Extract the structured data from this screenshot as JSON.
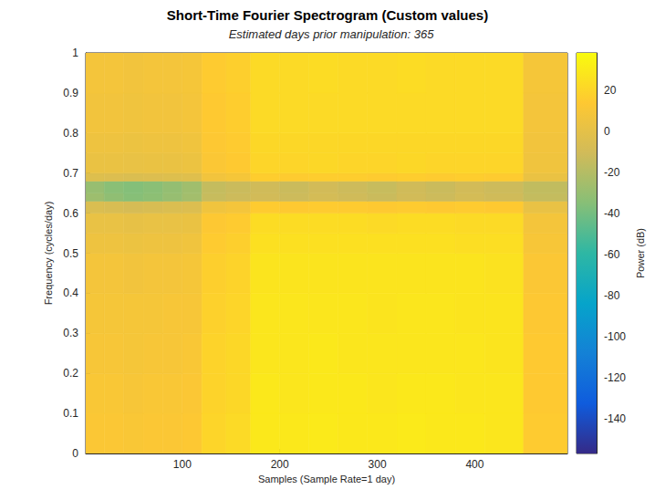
{
  "chart_data": {
    "type": "heatmap",
    "title": "Short-Time Fourier Spectrogram (Custom values)",
    "subtitle": "Estimated days prior manipulation: 365",
    "xlabel": "Samples (Sample Rate=1 day)",
    "ylabel": "Frequency (cycles/day)",
    "xlim": [
      1,
      495
    ],
    "xticks": [
      100,
      200,
      300,
      400
    ],
    "ylim": [
      0,
      1
    ],
    "yticks": [
      0,
      0.1,
      0.2,
      0.3,
      0.4,
      0.5,
      0.6,
      0.7,
      0.8,
      0.9,
      1
    ],
    "x_edges": [
      1,
      20,
      40,
      60,
      80,
      100,
      120,
      145,
      170,
      200,
      230,
      260,
      290,
      320,
      350,
      380,
      410,
      450,
      495
    ],
    "y_edges": [
      0,
      0.1,
      0.2,
      0.3,
      0.4,
      0.5,
      0.55,
      0.6,
      0.63,
      0.65,
      0.68,
      0.7,
      0.75,
      0.8,
      0.9,
      1
    ],
    "z": [
      [
        12,
        12,
        11,
        12,
        12,
        13,
        20,
        22,
        29,
        29,
        30,
        29,
        29,
        30,
        29,
        29,
        28,
        15
      ],
      [
        11,
        11,
        10,
        11,
        11,
        12,
        19,
        21,
        29,
        28,
        29,
        29,
        28,
        29,
        29,
        28,
        28,
        14
      ],
      [
        10,
        10,
        9,
        10,
        10,
        11,
        19,
        21,
        28,
        28,
        29,
        28,
        28,
        28,
        28,
        28,
        27,
        14
      ],
      [
        9,
        9,
        9,
        9,
        10,
        10,
        18,
        20,
        28,
        28,
        28,
        28,
        27,
        28,
        28,
        27,
        27,
        13
      ],
      [
        8,
        8,
        7,
        8,
        8,
        9,
        17,
        19,
        27,
        27,
        27,
        27,
        27,
        27,
        27,
        27,
        26,
        12
      ],
      [
        5,
        5,
        4,
        5,
        5,
        6,
        15,
        17,
        25,
        25,
        25,
        25,
        25,
        25,
        25,
        24,
        24,
        10
      ],
      [
        2,
        2,
        1,
        2,
        2,
        3,
        13,
        15,
        23,
        23,
        23,
        23,
        22,
        23,
        23,
        22,
        22,
        8
      ],
      [
        -6,
        -7,
        -8,
        -7,
        -6,
        -5,
        6,
        8,
        15,
        14,
        15,
        15,
        14,
        15,
        14,
        15,
        14,
        2
      ],
      [
        -28,
        -32,
        -35,
        -33,
        -30,
        -26,
        -14,
        -12,
        -10,
        -12,
        -9,
        -11,
        -13,
        -10,
        -12,
        -9,
        -11,
        -15
      ],
      [
        -30,
        -34,
        -36,
        -34,
        -31,
        -27,
        -15,
        -13,
        -11,
        -13,
        -10,
        -12,
        -14,
        -11,
        -13,
        -10,
        -12,
        -16
      ],
      [
        -4,
        -5,
        -6,
        -5,
        -4,
        -3,
        7,
        9,
        16,
        15,
        16,
        16,
        15,
        16,
        15,
        16,
        15,
        3
      ],
      [
        3,
        3,
        2,
        3,
        3,
        4,
        12,
        14,
        20,
        20,
        21,
        20,
        20,
        21,
        20,
        20,
        20,
        6
      ],
      [
        5,
        5,
        4,
        5,
        5,
        6,
        13,
        15,
        21,
        21,
        21,
        21,
        21,
        21,
        21,
        21,
        21,
        7
      ],
      [
        7,
        7,
        6,
        7,
        7,
        8,
        14,
        16,
        22,
        22,
        22,
        22,
        22,
        22,
        22,
        22,
        22,
        8
      ],
      [
        8,
        8,
        7,
        8,
        8,
        9,
        15,
        17,
        22,
        22,
        23,
        22,
        22,
        23,
        22,
        22,
        22,
        9
      ]
    ],
    "colorbar": {
      "label": "Power (dB)",
      "range": [
        -157,
        38
      ],
      "ticks": [
        20,
        0,
        -20,
        -40,
        -60,
        -80,
        -100,
        -120,
        -140
      ]
    }
  }
}
